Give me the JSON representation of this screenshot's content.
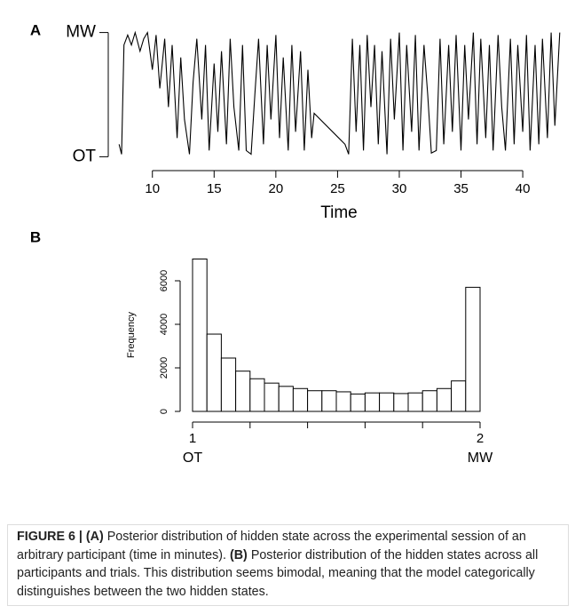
{
  "chart_data": [
    {
      "type": "line",
      "panel": "A",
      "xlabel": "Time",
      "x": [
        7.3,
        7.5,
        7.7,
        8.0,
        8.3,
        8.6,
        9.0,
        9.3,
        9.6,
        10.0,
        10.3,
        10.6,
        11.0,
        11.3,
        11.6,
        12.0,
        12.3,
        12.6,
        13.0,
        13.3,
        13.6,
        14.0,
        14.3,
        14.6,
        15.0,
        15.3,
        15.6,
        16.0,
        16.3,
        16.6,
        17.0,
        17.3,
        17.6,
        18.0,
        18.3,
        18.6,
        19.0,
        19.3,
        19.6,
        20.0,
        20.3,
        20.6,
        21.0,
        21.3,
        21.6,
        22.0,
        22.3,
        22.6,
        22.9,
        23.1,
        25.6,
        25.9,
        26.2,
        26.5,
        26.8,
        27.1,
        27.4,
        27.7,
        28.0,
        28.3,
        28.6,
        29.0,
        29.3,
        29.6,
        30.0,
        30.3,
        30.6,
        31.0,
        31.3,
        31.6,
        32.0,
        32.3,
        32.6,
        33.0,
        33.3,
        33.6,
        34.0,
        34.3,
        34.6,
        35.0,
        35.3,
        35.6,
        36.0,
        36.3,
        36.6,
        37.0,
        37.3,
        37.6,
        38.0,
        38.3,
        38.6,
        39.0,
        39.3,
        39.6,
        40.0,
        40.3,
        40.6,
        41.0,
        41.3,
        41.6,
        42.0,
        42.3,
        42.6,
        43.0
      ],
      "values": [
        1.1,
        1.02,
        1.9,
        1.98,
        1.9,
        2,
        1.85,
        1.95,
        2,
        1.7,
        1.98,
        1.55,
        1.95,
        1.4,
        1.9,
        1.15,
        1.8,
        1.3,
        1.02,
        1.6,
        1.95,
        1.3,
        1.9,
        1.05,
        1.75,
        1.2,
        1.85,
        1.1,
        1.95,
        1.4,
        1.05,
        1.9,
        1.05,
        1.02,
        1.5,
        1.95,
        1.1,
        1.9,
        1.3,
        1.98,
        1.15,
        1.8,
        1.05,
        1.9,
        1.2,
        1.85,
        1.05,
        1.7,
        1.15,
        1.35,
        1.1,
        1.02,
        1.95,
        1.2,
        1.9,
        1.05,
        1.98,
        1.4,
        1.9,
        1.1,
        1.85,
        1.02,
        1.95,
        1.3,
        2,
        1.05,
        1.9,
        1.2,
        1.98,
        1.05,
        1.9,
        1.5,
        1.03,
        1.05,
        1.95,
        1.1,
        1.9,
        1.2,
        1.98,
        1.05,
        1.9,
        1.3,
        2,
        1.1,
        1.95,
        1.15,
        1.9,
        1.05,
        1.98,
        1.4,
        1.05,
        1.95,
        1.1,
        1.9,
        1.2,
        1.98,
        1.05,
        1.9,
        1.1,
        1.95,
        1.15,
        2,
        1.25,
        2
      ],
      "color": "#000000",
      "xlim": [
        7,
        43.3
      ],
      "xticks": [
        10,
        15,
        20,
        25,
        30,
        35,
        40
      ],
      "ylim": [
        0.96,
        2.04
      ],
      "yticks": [
        {
          "value": 1,
          "label": "OT"
        },
        {
          "value": 2,
          "label": "MW"
        }
      ]
    },
    {
      "type": "histogram",
      "panel": "B",
      "ylabel": "Frequency",
      "bins": [
        1,
        1.05,
        1.1,
        1.15,
        1.2,
        1.25,
        1.3,
        1.35,
        1.4,
        1.45,
        1.5,
        1.55,
        1.6,
        1.65,
        1.7,
        1.75,
        1.8,
        1.85,
        1.9,
        1.95,
        2
      ],
      "values": [
        7000,
        3550,
        2450,
        1850,
        1500,
        1300,
        1150,
        1050,
        950,
        950,
        900,
        800,
        850,
        850,
        820,
        850,
        950,
        1050,
        1400,
        5700
      ],
      "color": "#ffffff",
      "xlim": [
        1,
        2
      ],
      "xticks": [
        1,
        2
      ],
      "minor_xticks": [
        1.2,
        1.4,
        1.6,
        1.8
      ],
      "xtick_sublabels": [
        "OT",
        "MW"
      ],
      "ylim": [
        0,
        7000
      ],
      "yticks": [
        0,
        2000,
        4000,
        6000
      ]
    }
  ],
  "caption": {
    "figure": "FIGURE 6 |",
    "a_label": "(A)",
    "a_text": "Posterior distribution of hidden state across the experimental session of an arbitrary participant (time in minutes).",
    "b_label": "(B)",
    "b_text": "Posterior distribution of the hidden states across all participants and trials. This distribution seems bimodal, meaning that the model categorically distinguishes between the two hidden states."
  }
}
